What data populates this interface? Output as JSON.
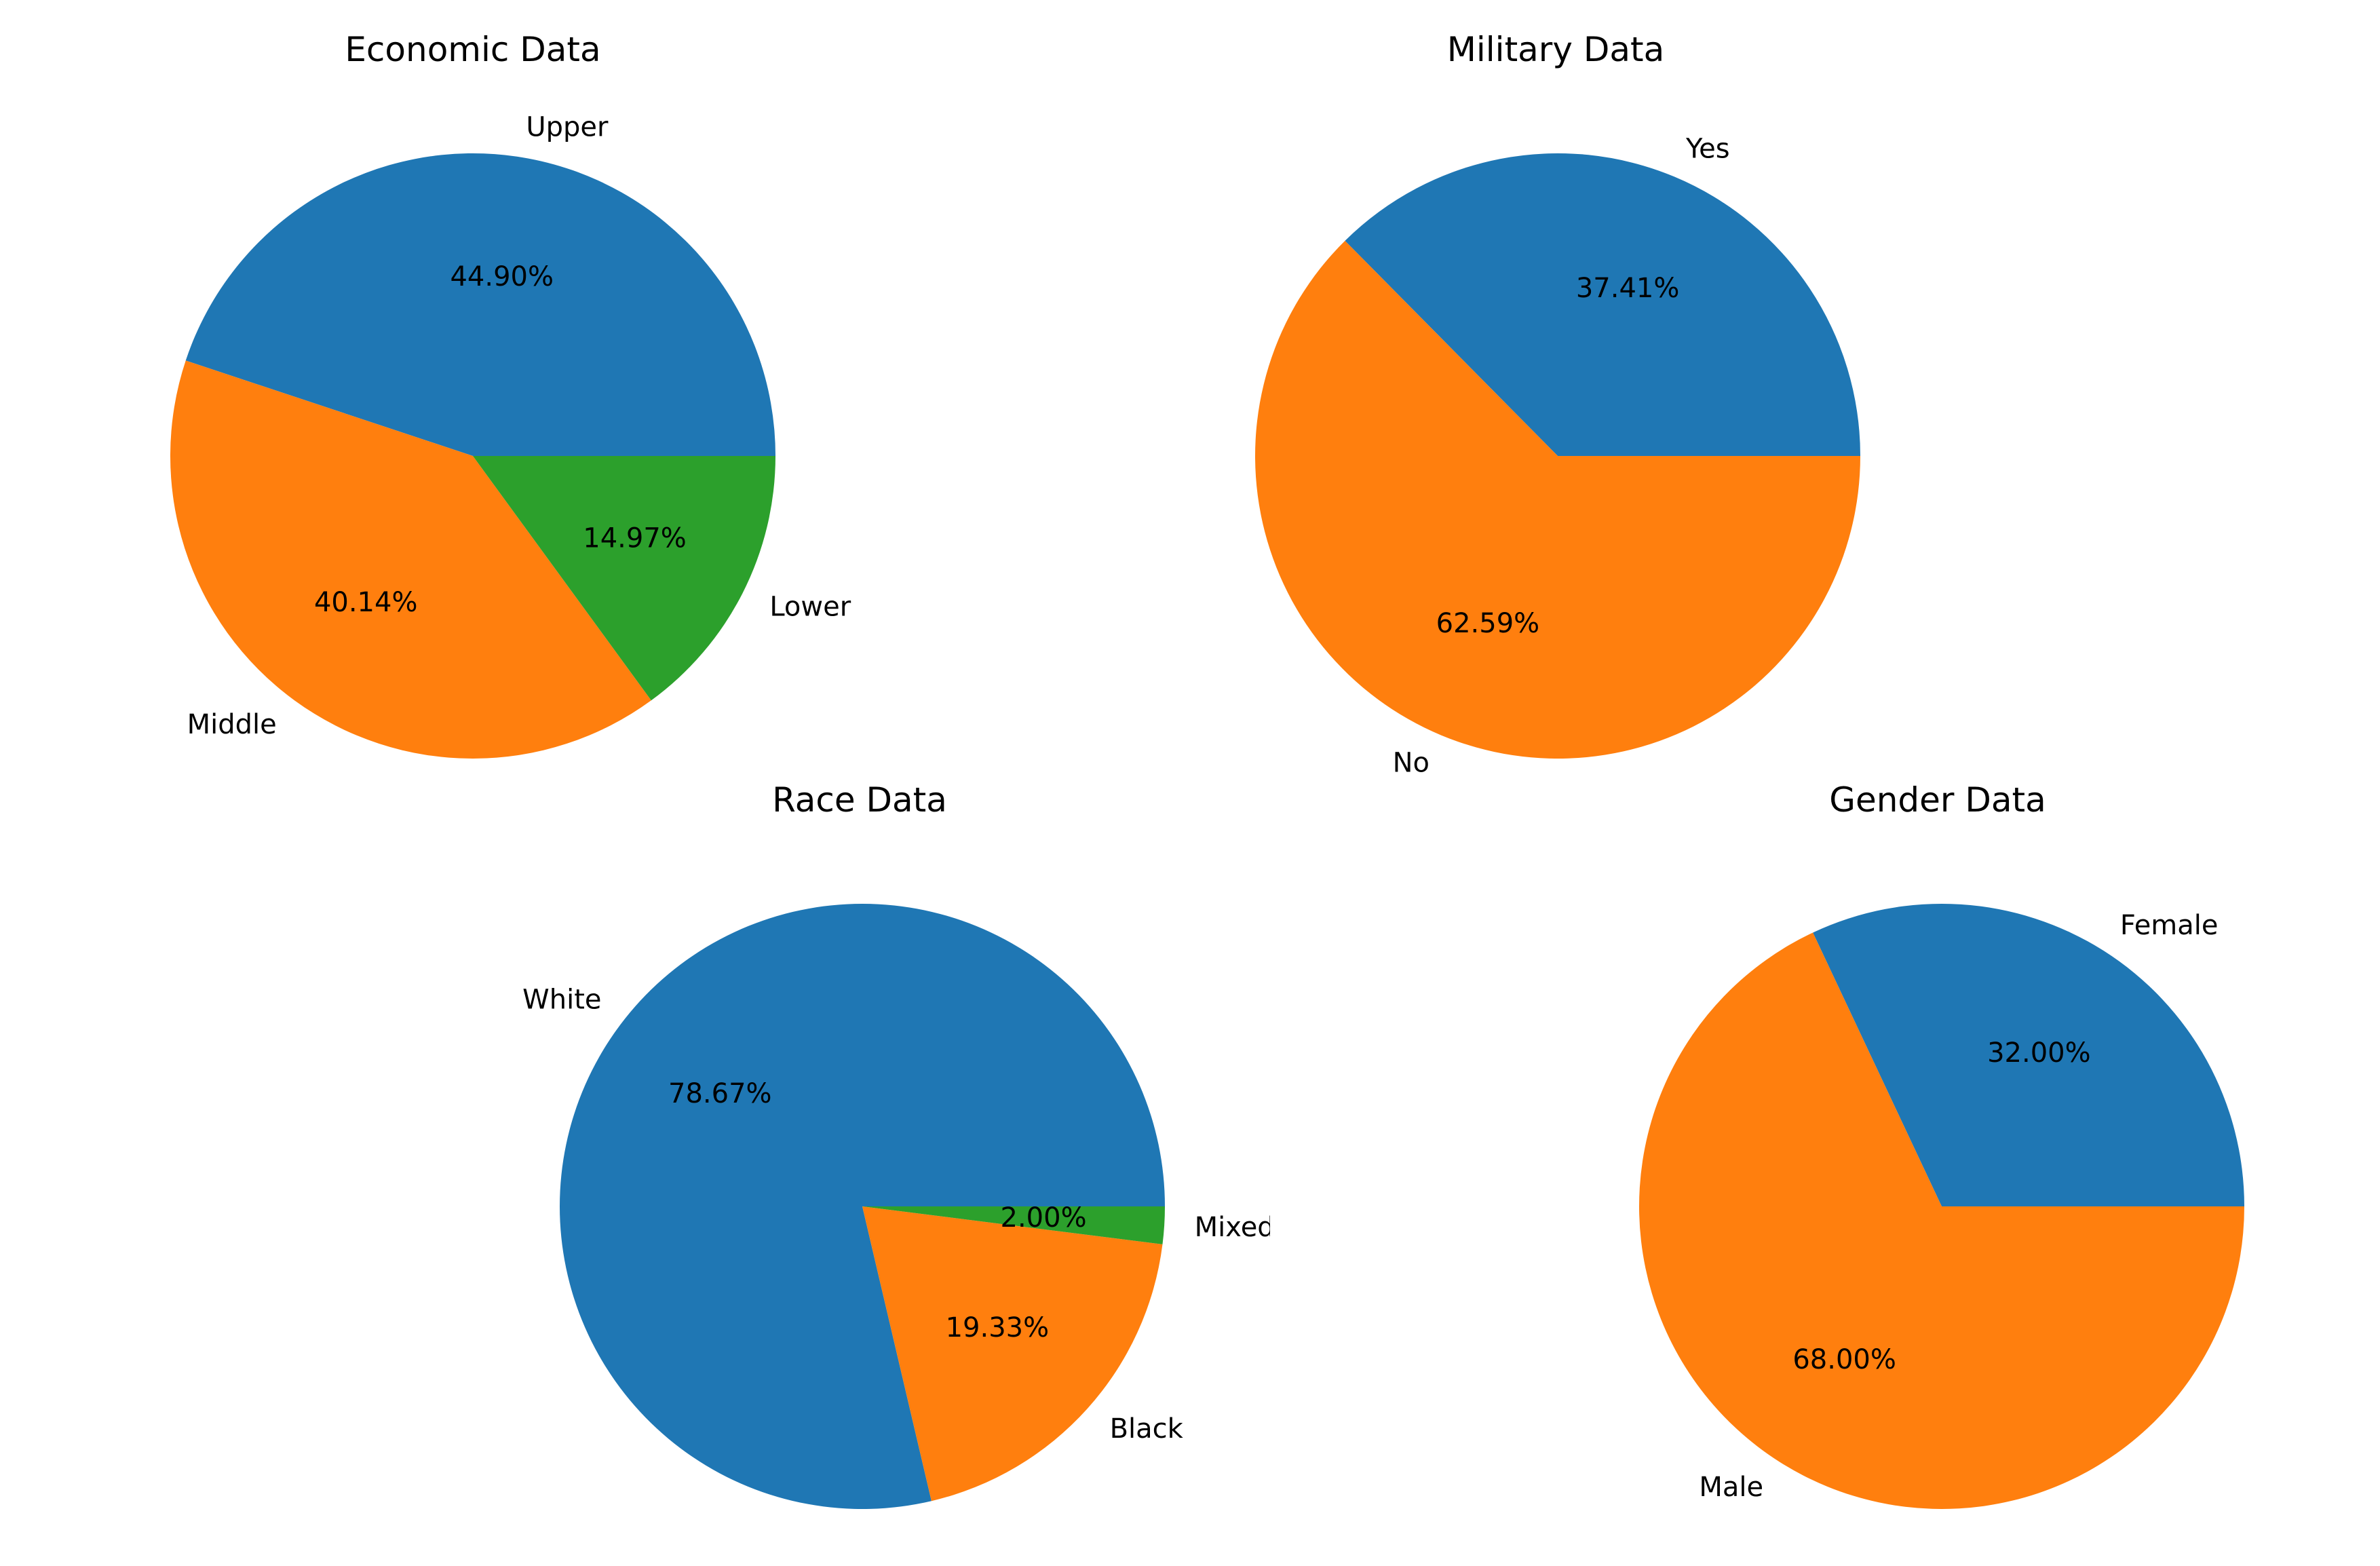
{
  "chart_data": [
    {
      "type": "pie",
      "title": "Economic Data",
      "categories": [
        "Upper",
        "Middle",
        "Lower"
      ],
      "values": [
        44.9,
        40.14,
        14.97
      ],
      "value_labels": [
        "44.90%",
        "40.14%",
        "14.97%"
      ],
      "colors": [
        "#1f77b4",
        "#ff7f0e",
        "#2ca02c"
      ],
      "start_angle": 0,
      "direction": "counterclockwise"
    },
    {
      "type": "pie",
      "title": "Military Data",
      "categories": [
        "Yes",
        "No"
      ],
      "values": [
        37.41,
        62.59
      ],
      "value_labels": [
        "37.41%",
        "62.59%"
      ],
      "colors": [
        "#1f77b4",
        "#ff7f0e"
      ],
      "start_angle": 0,
      "direction": "counterclockwise"
    },
    {
      "type": "pie",
      "title": "Race Data",
      "categories": [
        "White",
        "Black",
        "Mixed"
      ],
      "values": [
        78.67,
        19.33,
        2.0
      ],
      "value_labels": [
        "78.67%",
        "19.33%",
        "2.00%"
      ],
      "colors": [
        "#1f77b4",
        "#ff7f0e",
        "#2ca02c"
      ],
      "start_angle": 0,
      "direction": "counterclockwise"
    },
    {
      "type": "pie",
      "title": "Gender Data",
      "categories": [
        "Female",
        "Male"
      ],
      "values": [
        32.0,
        68.0
      ],
      "value_labels": [
        "32.00%",
        "68.00%"
      ],
      "colors": [
        "#1f77b4",
        "#ff7f0e"
      ],
      "start_angle": 0,
      "direction": "counterclockwise"
    }
  ]
}
